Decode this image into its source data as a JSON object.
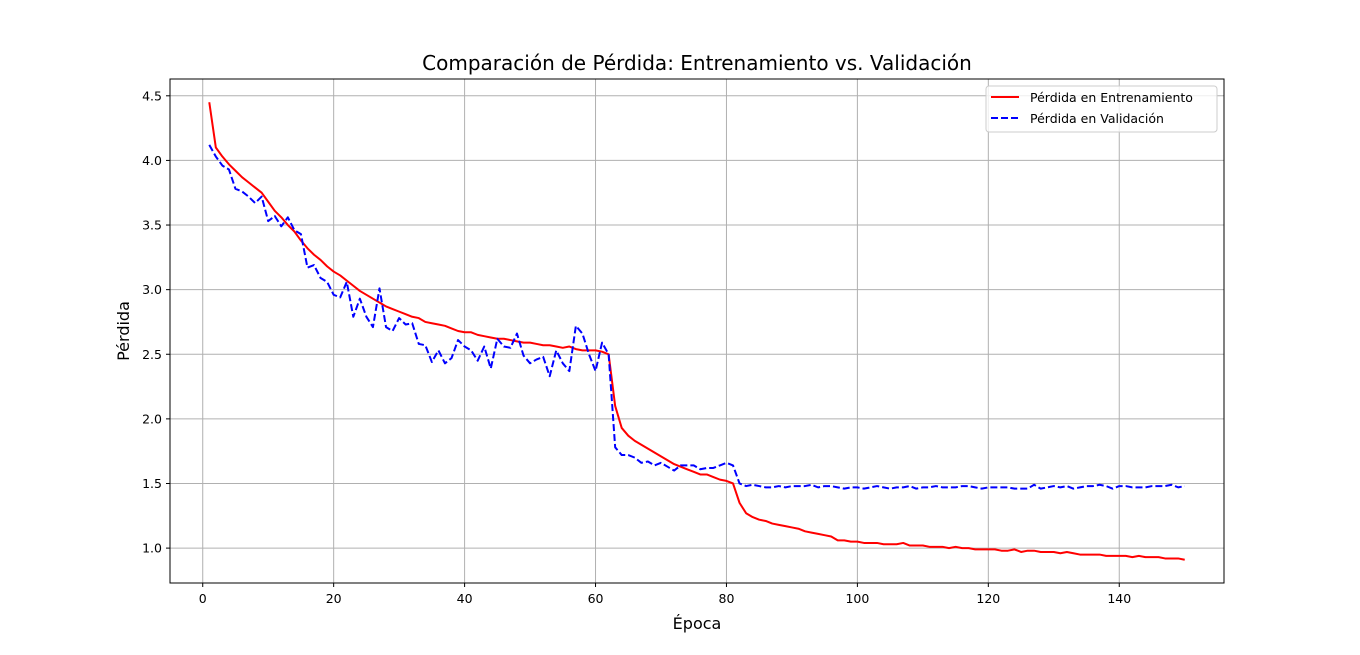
{
  "chart_data": {
    "type": "line",
    "title": "Comparación de Pérdida: Entrenamiento vs. Validación",
    "xlabel": "Época",
    "ylabel": "Pérdida",
    "xlim": [
      -5,
      156
    ],
    "ylim": [
      0.73,
      4.63
    ],
    "xticks": [
      0,
      20,
      40,
      60,
      80,
      100,
      120,
      140
    ],
    "yticks": [
      1.0,
      1.5,
      2.0,
      2.5,
      3.0,
      3.5,
      4.0,
      4.5
    ],
    "grid": true,
    "legend_position": "top-right",
    "series": [
      {
        "name": "Pérdida en Entrenamiento",
        "color": "#ff0000",
        "style": "solid",
        "points": [
          [
            1,
            4.45
          ],
          [
            2,
            4.1
          ],
          [
            3,
            4.03
          ],
          [
            4,
            3.97
          ],
          [
            5,
            3.92
          ],
          [
            6,
            3.87
          ],
          [
            7,
            3.83
          ],
          [
            8,
            3.79
          ],
          [
            9,
            3.75
          ],
          [
            10,
            3.68
          ],
          [
            11,
            3.61
          ],
          [
            12,
            3.56
          ],
          [
            13,
            3.5
          ],
          [
            14,
            3.45
          ],
          [
            15,
            3.38
          ],
          [
            16,
            3.32
          ],
          [
            17,
            3.27
          ],
          [
            18,
            3.23
          ],
          [
            19,
            3.18
          ],
          [
            20,
            3.14
          ],
          [
            21,
            3.11
          ],
          [
            22,
            3.07
          ],
          [
            23,
            3.03
          ],
          [
            24,
            2.99
          ],
          [
            25,
            2.96
          ],
          [
            26,
            2.93
          ],
          [
            27,
            2.9
          ],
          [
            28,
            2.87
          ],
          [
            29,
            2.85
          ],
          [
            30,
            2.83
          ],
          [
            31,
            2.81
          ],
          [
            32,
            2.79
          ],
          [
            33,
            2.78
          ],
          [
            34,
            2.75
          ],
          [
            35,
            2.74
          ],
          [
            36,
            2.73
          ],
          [
            37,
            2.72
          ],
          [
            38,
            2.7
          ],
          [
            39,
            2.68
          ],
          [
            40,
            2.67
          ],
          [
            41,
            2.67
          ],
          [
            42,
            2.65
          ],
          [
            43,
            2.64
          ],
          [
            44,
            2.63
          ],
          [
            45,
            2.62
          ],
          [
            46,
            2.62
          ],
          [
            47,
            2.61
          ],
          [
            48,
            2.6
          ],
          [
            49,
            2.59
          ],
          [
            50,
            2.59
          ],
          [
            51,
            2.58
          ],
          [
            52,
            2.57
          ],
          [
            53,
            2.57
          ],
          [
            54,
            2.56
          ],
          [
            55,
            2.55
          ],
          [
            56,
            2.56
          ],
          [
            57,
            2.54
          ],
          [
            58,
            2.53
          ],
          [
            59,
            2.53
          ],
          [
            60,
            2.53
          ],
          [
            61,
            2.52
          ],
          [
            62,
            2.5
          ],
          [
            63,
            2.1
          ],
          [
            64,
            1.93
          ],
          [
            65,
            1.87
          ],
          [
            66,
            1.83
          ],
          [
            67,
            1.8
          ],
          [
            68,
            1.77
          ],
          [
            69,
            1.74
          ],
          [
            70,
            1.71
          ],
          [
            71,
            1.68
          ],
          [
            72,
            1.65
          ],
          [
            73,
            1.63
          ],
          [
            74,
            1.61
          ],
          [
            75,
            1.59
          ],
          [
            76,
            1.57
          ],
          [
            77,
            1.57
          ],
          [
            78,
            1.55
          ],
          [
            79,
            1.53
          ],
          [
            80,
            1.52
          ],
          [
            81,
            1.5
          ],
          [
            82,
            1.35
          ],
          [
            83,
            1.27
          ],
          [
            84,
            1.24
          ],
          [
            85,
            1.22
          ],
          [
            86,
            1.21
          ],
          [
            87,
            1.19
          ],
          [
            88,
            1.18
          ],
          [
            89,
            1.17
          ],
          [
            90,
            1.16
          ],
          [
            91,
            1.15
          ],
          [
            92,
            1.13
          ],
          [
            93,
            1.12
          ],
          [
            94,
            1.11
          ],
          [
            95,
            1.1
          ],
          [
            96,
            1.09
          ],
          [
            97,
            1.06
          ],
          [
            98,
            1.06
          ],
          [
            99,
            1.05
          ],
          [
            100,
            1.05
          ],
          [
            101,
            1.04
          ],
          [
            102,
            1.04
          ],
          [
            103,
            1.04
          ],
          [
            104,
            1.03
          ],
          [
            105,
            1.03
          ],
          [
            106,
            1.03
          ],
          [
            107,
            1.04
          ],
          [
            108,
            1.02
          ],
          [
            109,
            1.02
          ],
          [
            110,
            1.02
          ],
          [
            111,
            1.01
          ],
          [
            112,
            1.01
          ],
          [
            113,
            1.01
          ],
          [
            114,
            1.0
          ],
          [
            115,
            1.01
          ],
          [
            116,
            1.0
          ],
          [
            117,
            1.0
          ],
          [
            118,
            0.99
          ],
          [
            119,
            0.99
          ],
          [
            120,
            0.99
          ],
          [
            121,
            0.99
          ],
          [
            122,
            0.98
          ],
          [
            123,
            0.98
          ],
          [
            124,
            0.99
          ],
          [
            125,
            0.97
          ],
          [
            126,
            0.98
          ],
          [
            127,
            0.98
          ],
          [
            128,
            0.97
          ],
          [
            129,
            0.97
          ],
          [
            130,
            0.97
          ],
          [
            131,
            0.96
          ],
          [
            132,
            0.97
          ],
          [
            133,
            0.96
          ],
          [
            134,
            0.95
          ],
          [
            135,
            0.95
          ],
          [
            136,
            0.95
          ],
          [
            137,
            0.95
          ],
          [
            138,
            0.94
          ],
          [
            139,
            0.94
          ],
          [
            140,
            0.94
          ],
          [
            141,
            0.94
          ],
          [
            142,
            0.93
          ],
          [
            143,
            0.94
          ],
          [
            144,
            0.93
          ],
          [
            145,
            0.93
          ],
          [
            146,
            0.93
          ],
          [
            147,
            0.92
          ],
          [
            148,
            0.92
          ],
          [
            149,
            0.92
          ],
          [
            150,
            0.91
          ]
        ]
      },
      {
        "name": "Pérdida en Validación",
        "color": "#0000ff",
        "style": "dashed",
        "points": [
          [
            1,
            4.12
          ],
          [
            2,
            4.03
          ],
          [
            3,
            3.96
          ],
          [
            4,
            3.93
          ],
          [
            5,
            3.78
          ],
          [
            6,
            3.76
          ],
          [
            7,
            3.72
          ],
          [
            8,
            3.67
          ],
          [
            9,
            3.72
          ],
          [
            10,
            3.53
          ],
          [
            11,
            3.57
          ],
          [
            12,
            3.49
          ],
          [
            13,
            3.56
          ],
          [
            14,
            3.46
          ],
          [
            15,
            3.43
          ],
          [
            16,
            3.17
          ],
          [
            17,
            3.19
          ],
          [
            18,
            3.09
          ],
          [
            19,
            3.06
          ],
          [
            20,
            2.96
          ],
          [
            21,
            2.94
          ],
          [
            22,
            3.06
          ],
          [
            23,
            2.79
          ],
          [
            24,
            2.93
          ],
          [
            25,
            2.79
          ],
          [
            26,
            2.71
          ],
          [
            27,
            3.01
          ],
          [
            28,
            2.71
          ],
          [
            29,
            2.68
          ],
          [
            30,
            2.78
          ],
          [
            31,
            2.73
          ],
          [
            32,
            2.74
          ],
          [
            33,
            2.58
          ],
          [
            34,
            2.57
          ],
          [
            35,
            2.44
          ],
          [
            36,
            2.53
          ],
          [
            37,
            2.43
          ],
          [
            38,
            2.47
          ],
          [
            39,
            2.61
          ],
          [
            40,
            2.56
          ],
          [
            41,
            2.53
          ],
          [
            42,
            2.45
          ],
          [
            43,
            2.56
          ],
          [
            44,
            2.39
          ],
          [
            45,
            2.62
          ],
          [
            46,
            2.56
          ],
          [
            47,
            2.55
          ],
          [
            48,
            2.66
          ],
          [
            49,
            2.49
          ],
          [
            50,
            2.43
          ],
          [
            51,
            2.46
          ],
          [
            52,
            2.48
          ],
          [
            53,
            2.33
          ],
          [
            54,
            2.53
          ],
          [
            55,
            2.43
          ],
          [
            56,
            2.37
          ],
          [
            57,
            2.72
          ],
          [
            58,
            2.66
          ],
          [
            59,
            2.5
          ],
          [
            60,
            2.37
          ],
          [
            61,
            2.59
          ],
          [
            62,
            2.5
          ],
          [
            63,
            1.78
          ],
          [
            64,
            1.72
          ],
          [
            65,
            1.72
          ],
          [
            66,
            1.7
          ],
          [
            67,
            1.66
          ],
          [
            68,
            1.67
          ],
          [
            69,
            1.64
          ],
          [
            70,
            1.66
          ],
          [
            71,
            1.63
          ],
          [
            72,
            1.6
          ],
          [
            73,
            1.64
          ],
          [
            74,
            1.64
          ],
          [
            75,
            1.64
          ],
          [
            76,
            1.61
          ],
          [
            77,
            1.62
          ],
          [
            78,
            1.62
          ],
          [
            79,
            1.64
          ],
          [
            80,
            1.66
          ],
          [
            81,
            1.64
          ],
          [
            82,
            1.5
          ],
          [
            83,
            1.48
          ],
          [
            84,
            1.49
          ],
          [
            85,
            1.48
          ],
          [
            86,
            1.47
          ],
          [
            87,
            1.47
          ],
          [
            88,
            1.48
          ],
          [
            89,
            1.47
          ],
          [
            90,
            1.48
          ],
          [
            91,
            1.48
          ],
          [
            92,
            1.48
          ],
          [
            93,
            1.49
          ],
          [
            94,
            1.47
          ],
          [
            95,
            1.48
          ],
          [
            96,
            1.48
          ],
          [
            97,
            1.47
          ],
          [
            98,
            1.46
          ],
          [
            99,
            1.47
          ],
          [
            100,
            1.47
          ],
          [
            101,
            1.46
          ],
          [
            102,
            1.47
          ],
          [
            103,
            1.48
          ],
          [
            104,
            1.47
          ],
          [
            105,
            1.46
          ],
          [
            106,
            1.47
          ],
          [
            107,
            1.47
          ],
          [
            108,
            1.48
          ],
          [
            109,
            1.46
          ],
          [
            110,
            1.47
          ],
          [
            111,
            1.47
          ],
          [
            112,
            1.48
          ],
          [
            113,
            1.47
          ],
          [
            114,
            1.47
          ],
          [
            115,
            1.47
          ],
          [
            116,
            1.48
          ],
          [
            117,
            1.48
          ],
          [
            118,
            1.47
          ],
          [
            119,
            1.46
          ],
          [
            120,
            1.47
          ],
          [
            121,
            1.47
          ],
          [
            122,
            1.47
          ],
          [
            123,
            1.47
          ],
          [
            124,
            1.46
          ],
          [
            125,
            1.46
          ],
          [
            126,
            1.46
          ],
          [
            127,
            1.49
          ],
          [
            128,
            1.46
          ],
          [
            129,
            1.47
          ],
          [
            130,
            1.48
          ],
          [
            131,
            1.47
          ],
          [
            132,
            1.48
          ],
          [
            133,
            1.46
          ],
          [
            134,
            1.47
          ],
          [
            135,
            1.48
          ],
          [
            136,
            1.48
          ],
          [
            137,
            1.49
          ],
          [
            138,
            1.48
          ],
          [
            139,
            1.46
          ],
          [
            140,
            1.48
          ],
          [
            141,
            1.48
          ],
          [
            142,
            1.47
          ],
          [
            143,
            1.47
          ],
          [
            144,
            1.47
          ],
          [
            145,
            1.48
          ],
          [
            146,
            1.48
          ],
          [
            147,
            1.48
          ],
          [
            148,
            1.49
          ],
          [
            149,
            1.47
          ],
          [
            150,
            1.48
          ]
        ]
      }
    ]
  }
}
